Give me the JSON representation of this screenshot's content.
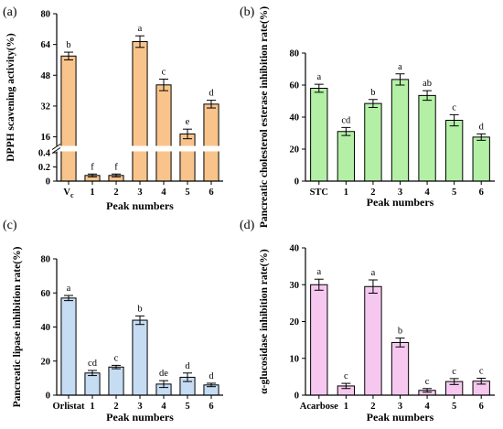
{
  "chart_data": [
    {
      "type": "bar",
      "panel_label": "(a)",
      "ylabel": "DPPH scavening activity(%)",
      "xlabel": "Peak numbers",
      "categories": [
        "Vc",
        "1",
        "2",
        "3",
        "4",
        "5",
        "6"
      ],
      "values": [
        58,
        0.08,
        0.08,
        65.5,
        43,
        17.5,
        33
      ],
      "errors": [
        2,
        0.02,
        0.02,
        3,
        3,
        2.5,
        2
      ],
      "significance": [
        "b",
        "f",
        "f",
        "a",
        "c",
        "e",
        "d"
      ],
      "y_axis_break": {
        "lower": [
          0,
          0.4
        ],
        "upper": [
          12,
          80
        ]
      },
      "yticks": [
        0,
        0.2,
        0.4,
        16,
        32,
        48,
        64,
        80
      ],
      "bar_color": "#f9c48b",
      "grid": false
    },
    {
      "type": "bar",
      "panel_label": "(b)",
      "ylabel": "Pancreatic cholesterol esterase inhibition rate(%)",
      "xlabel": "Peak numbers",
      "categories": [
        "STC",
        "1",
        "2",
        "3",
        "4",
        "5",
        "6"
      ],
      "values": [
        58,
        31,
        48.5,
        63.5,
        53.5,
        38,
        27.5
      ],
      "errors": [
        2.5,
        2.5,
        2.5,
        3.5,
        3,
        3.5,
        2
      ],
      "significance": [
        "a",
        "cd",
        "b",
        "a",
        "ab",
        "c",
        "d"
      ],
      "ylim": [
        0,
        80
      ],
      "yticks": [
        0,
        20,
        40,
        60,
        80
      ],
      "bar_color": "#b3f0a6",
      "grid": false
    },
    {
      "type": "bar",
      "panel_label": "(c)",
      "ylabel": "Pancreatic lipase inhibition rate(%)",
      "xlabel": "Peak numbers",
      "categories": [
        "Orlistat",
        "1",
        "2",
        "3",
        "4",
        "5",
        "6"
      ],
      "values": [
        57,
        13,
        16.5,
        44,
        6.5,
        10.5,
        6
      ],
      "errors": [
        1.5,
        1.5,
        1,
        2.5,
        2,
        2.5,
        1
      ],
      "significance": [
        "a",
        "cd",
        "c",
        "b",
        "de",
        "d",
        "d"
      ],
      "ylim": [
        0,
        80
      ],
      "yticks": [
        0,
        20,
        40,
        60,
        80
      ],
      "bar_color": "#c5dcf3",
      "grid": false
    },
    {
      "type": "bar",
      "panel_label": "(d)",
      "ylabel": "α-glucosidase inhibition rate(%)",
      "xlabel": "Peak numbers",
      "categories": [
        "Acarbose",
        "1",
        "2",
        "3",
        "4",
        "5",
        "6"
      ],
      "values": [
        30,
        2.5,
        29.5,
        14.3,
        1.3,
        3.7,
        3.8
      ],
      "errors": [
        1.5,
        0.7,
        1.8,
        1.2,
        0.5,
        0.8,
        0.8
      ],
      "significance": [
        "a",
        "c",
        "a",
        "b",
        "c",
        "c",
        "c"
      ],
      "ylim": [
        0,
        40
      ],
      "yticks": [
        0,
        10,
        20,
        30,
        40
      ],
      "bar_color": "#f6c8ef",
      "grid": false
    }
  ]
}
